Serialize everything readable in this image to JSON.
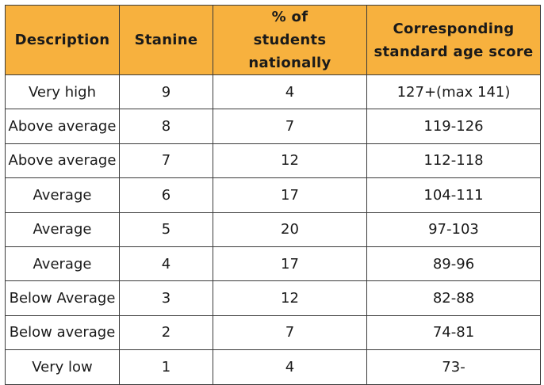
{
  "table": {
    "headers": [
      "Description",
      "Stanine",
      "% of students nationally",
      "Corresponding standard age score"
    ],
    "rows": [
      [
        "Very high",
        "9",
        "4",
        "127+(max 141)"
      ],
      [
        "Above average",
        "8",
        "7",
        "119-126"
      ],
      [
        "Above average",
        "7",
        "12",
        "112-118"
      ],
      [
        "Average",
        "6",
        "17",
        "104-111"
      ],
      [
        "Average",
        "5",
        "20",
        "97-103"
      ],
      [
        "Average",
        "4",
        "17",
        "89-96"
      ],
      [
        "Below Average",
        "3",
        "12",
        "82-88"
      ],
      [
        "Below average",
        "2",
        "7",
        "74-81"
      ],
      [
        "Very low",
        "1",
        "4",
        "73-"
      ]
    ],
    "header_color": "#f7b13e",
    "border_color": "#3a3a3a"
  }
}
